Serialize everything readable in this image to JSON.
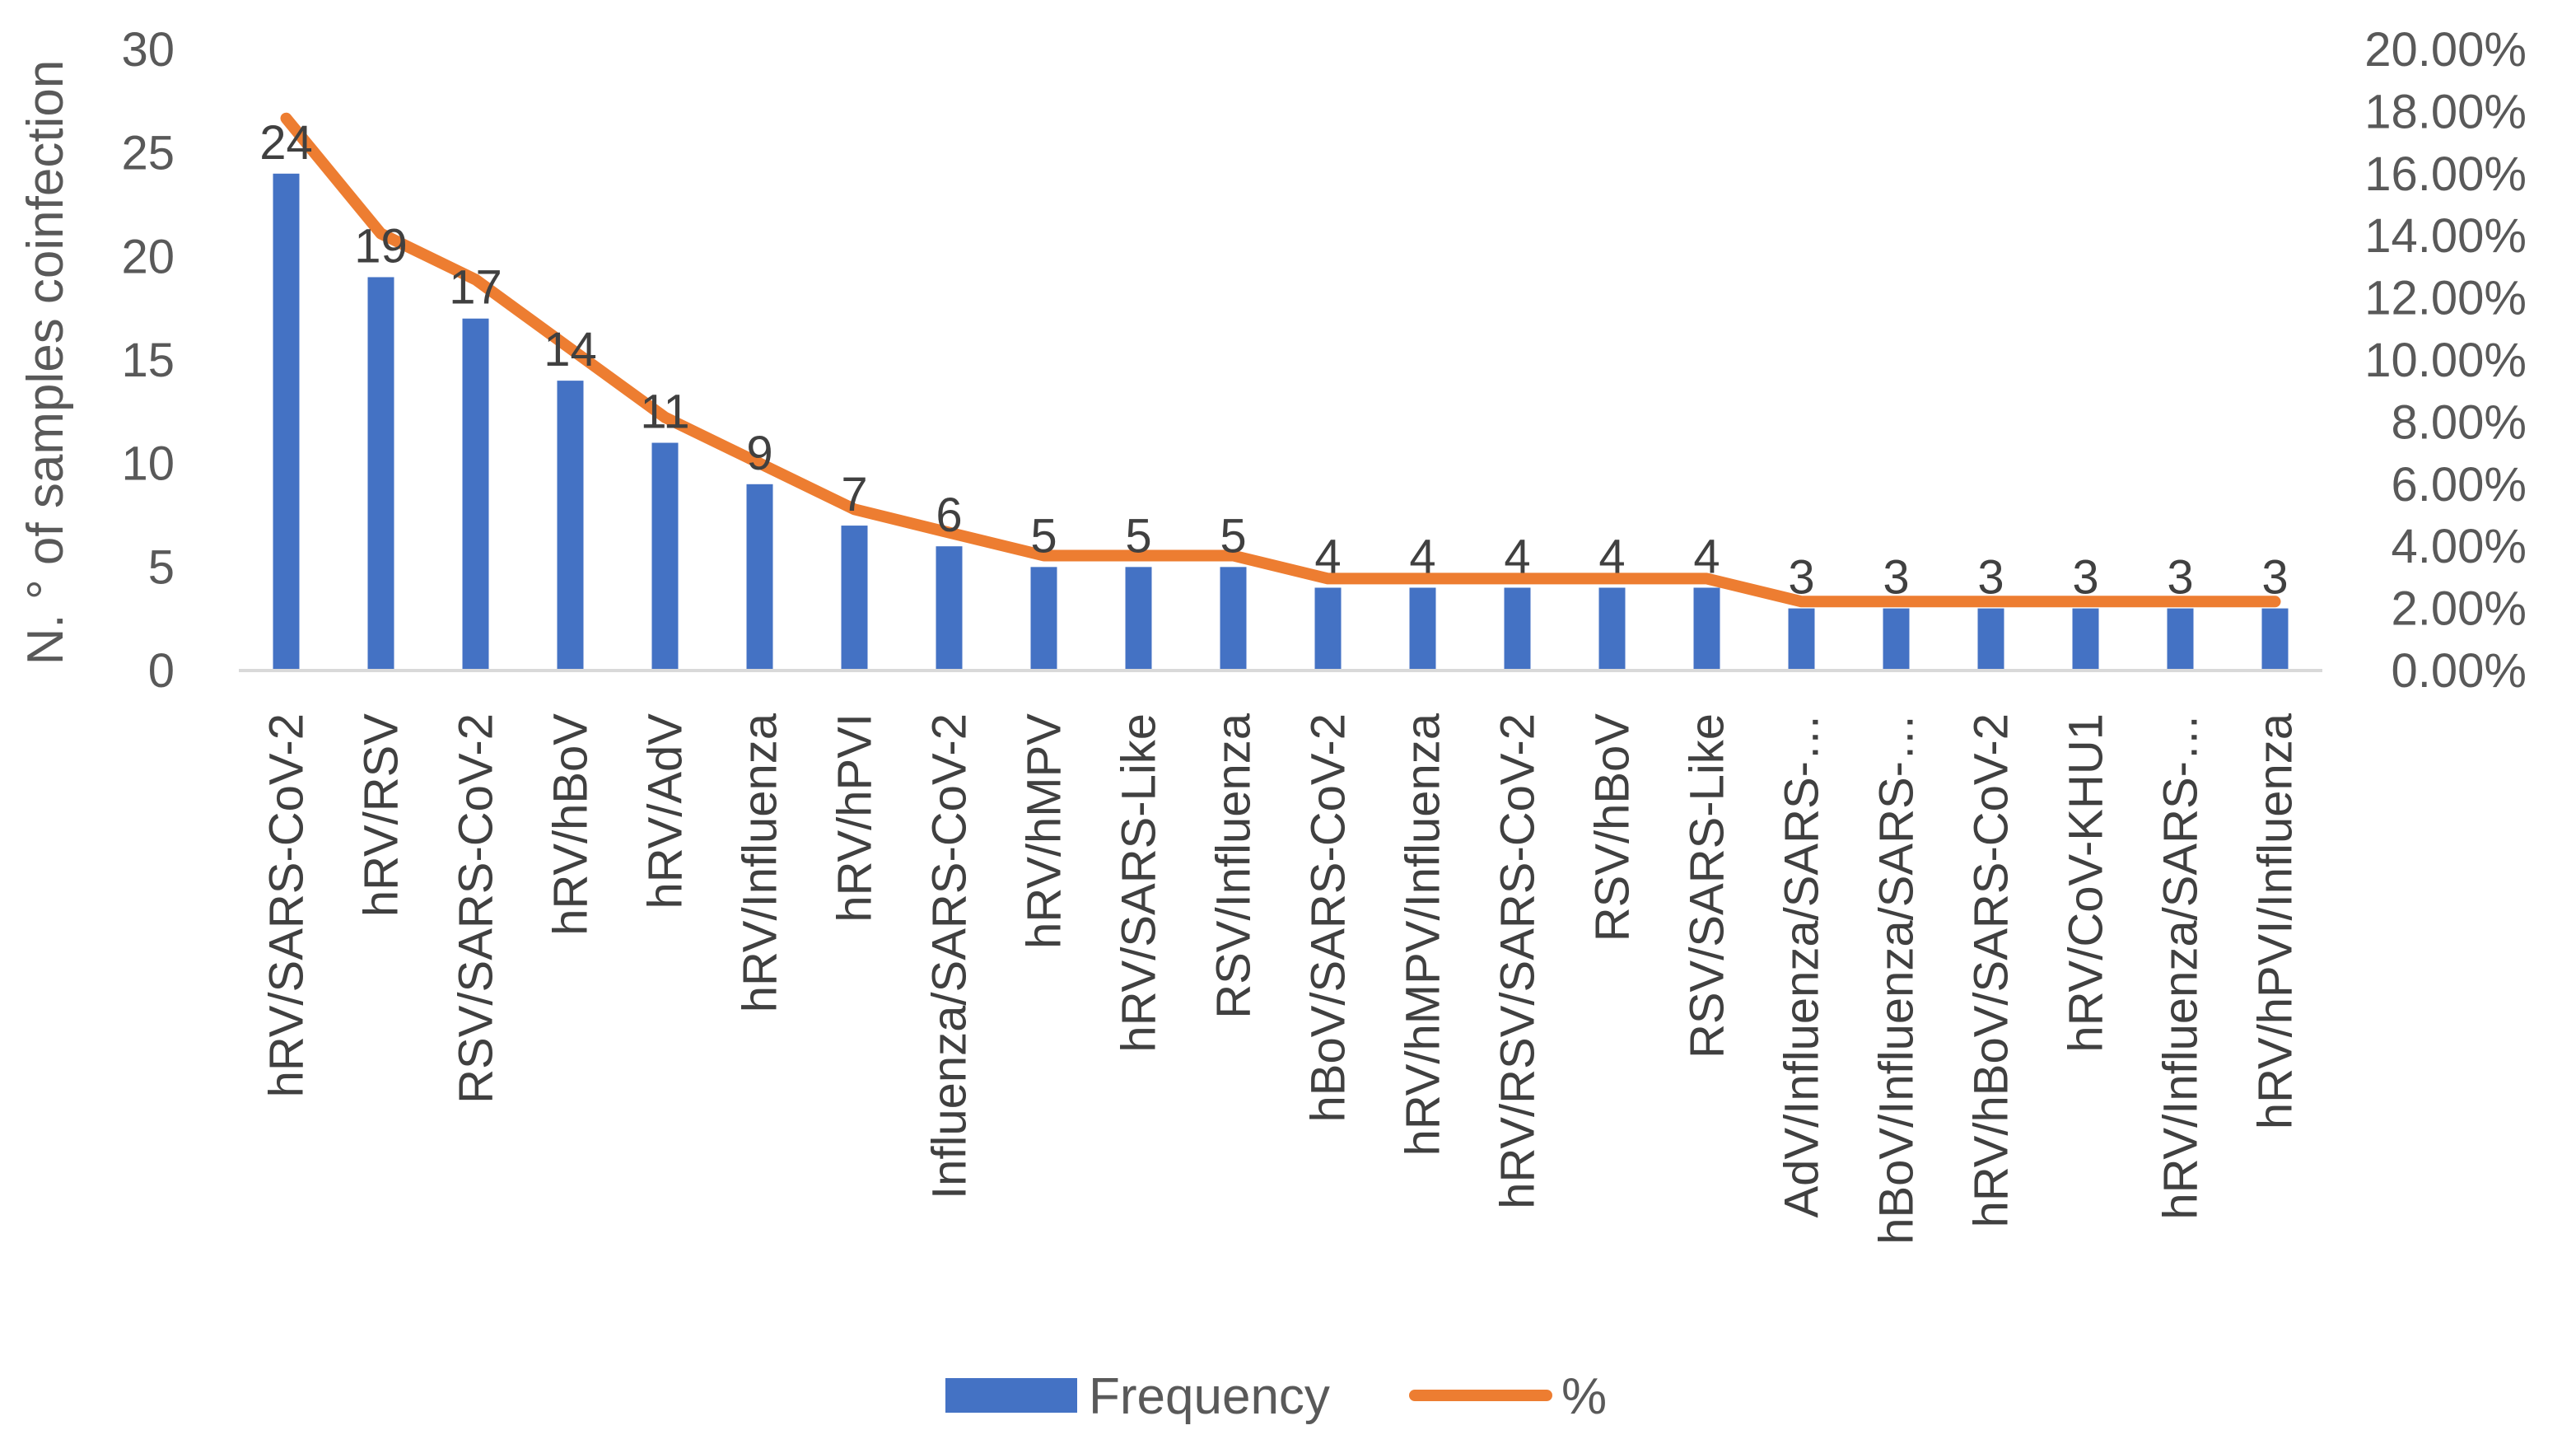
{
  "chart_data": {
    "type": "bar",
    "title": "",
    "xlabel": "",
    "ylabel": "N. ° of samples coinfection",
    "ylim": [
      0,
      30
    ],
    "y_ticks": [
      "0",
      "5",
      "10",
      "15",
      "20",
      "25",
      "30"
    ],
    "y2lim": [
      0,
      20
    ],
    "y2_ticks": [
      "0.00%",
      "2.00%",
      "4.00%",
      "6.00%",
      "8.00%",
      "10.00%",
      "12.00%",
      "14.00%",
      "16.00%",
      "18.00%",
      "20.00%"
    ],
    "grid": false,
    "legend_position": "bottom",
    "categories": [
      "hRV/SARS-CoV-2",
      "hRV/RSV",
      "RSV/SARS-CoV-2",
      "hRV/hBoV",
      "hRV/AdV",
      "hRV/Influenza",
      "hRV/hPVI",
      "Influenza/SARS-CoV-2",
      "hRV/hMPV",
      "hRV/SARS-Like",
      "RSV/Influenza",
      "hBoV/SARS-CoV-2",
      "hRV/hMPV/Influenza",
      "hRV/RSV/SARS-CoV-2",
      "RSV/hBoV",
      "RSV/SARS-Like",
      "AdV/Influenza/SARS-…",
      "hBoV/Influenza/SARS-…",
      "hRV/hBoV/SARS-CoV-2",
      "hRV/CoV-KHU1",
      "hRV/Influenza/SARS-…",
      "hRV/hPVI/Influenza"
    ],
    "series": [
      {
        "name": "Frequency",
        "type": "bar",
        "axis": "left",
        "color": "#4472C4",
        "values": [
          24,
          19,
          17,
          14,
          11,
          9,
          7,
          6,
          5,
          5,
          5,
          4,
          4,
          4,
          4,
          4,
          3,
          3,
          3,
          3,
          3,
          3
        ],
        "data_labels": [
          "24",
          "19",
          "17",
          "14",
          "11",
          "9",
          "7",
          "6",
          "5",
          "5",
          "5",
          "4",
          "4",
          "4",
          "4",
          "4",
          "3",
          "3",
          "3",
          "3",
          "3",
          "3"
        ]
      },
      {
        "name": "%",
        "type": "line",
        "axis": "right",
        "color": "#ED7D31",
        "values": [
          17.78,
          14.07,
          12.59,
          10.37,
          8.15,
          6.67,
          5.19,
          4.44,
          3.7,
          3.7,
          3.7,
          2.96,
          2.96,
          2.96,
          2.96,
          2.96,
          2.22,
          2.22,
          2.22,
          2.22,
          2.22,
          2.22
        ]
      }
    ]
  }
}
